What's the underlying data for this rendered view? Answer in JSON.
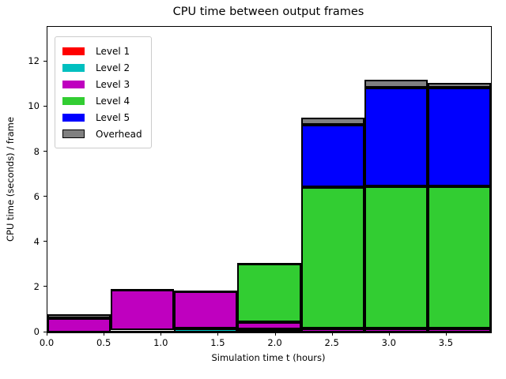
{
  "figure": {
    "title": "CPU time between output frames",
    "xlabel": "Simulation time t (hours)",
    "ylabel": "CPU time (seconds) / frame"
  },
  "chart_data": {
    "type": "bar",
    "subtype": "stacked-histogram",
    "title": "CPU time between output frames",
    "xlabel": "Simulation time t (hours)",
    "ylabel": "CPU time (seconds) / frame",
    "grid": false,
    "legend_position": "upper left",
    "xlim": [
      0,
      3.889
    ],
    "ylim": [
      0,
      13.55
    ],
    "bin_edges": [
      0.0,
      0.556,
      1.111,
      1.667,
      2.222,
      2.778,
      3.333,
      3.889
    ],
    "xticks": [
      0.0,
      0.5,
      1.0,
      1.5,
      2.0,
      2.5,
      3.0,
      3.5
    ],
    "xtick_labels": [
      "0.0",
      "0.5",
      "1.0",
      "1.5",
      "2.0",
      "2.5",
      "3.0",
      "3.5"
    ],
    "yticks": [
      0,
      2,
      4,
      6,
      8,
      10,
      12
    ],
    "ytick_labels": [
      "0",
      "2",
      "4",
      "6",
      "8",
      "10",
      "12"
    ],
    "bar_edge_color": "#000000",
    "series": [
      {
        "name": "Level 1",
        "color": "#ff0000",
        "values": [
          0,
          0,
          0,
          0,
          0,
          0,
          0
        ]
      },
      {
        "name": "Level 2",
        "color": "#00bfbf",
        "values": [
          0,
          0.1,
          0.17,
          0.13,
          0,
          0,
          0
        ]
      },
      {
        "name": "Level 3",
        "color": "#bf00bf",
        "values": [
          0.62,
          1.78,
          1.65,
          0.33,
          0.16,
          0.16,
          0.16
        ]
      },
      {
        "name": "Level 4",
        "color": "#32cd32",
        "values": [
          0,
          0,
          0,
          2.6,
          6.3,
          6.33,
          6.33
        ]
      },
      {
        "name": "Level 5",
        "color": "#0000ff",
        "values": [
          0,
          0,
          0,
          0,
          2.76,
          4.37,
          4.37
        ]
      },
      {
        "name": "Overhead",
        "color": "#808080",
        "values": [
          0.18,
          0,
          0,
          0,
          0.3,
          0.33,
          0.22
        ]
      }
    ],
    "bar_totals": [
      0.8,
      1.88,
      1.82,
      3.06,
      9.52,
      11.19,
      11.08
    ]
  }
}
